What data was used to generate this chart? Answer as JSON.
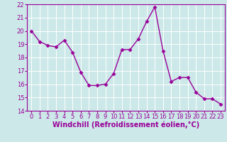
{
  "x": [
    0,
    1,
    2,
    3,
    4,
    5,
    6,
    7,
    8,
    9,
    10,
    11,
    12,
    13,
    14,
    15,
    16,
    17,
    18,
    19,
    20,
    21,
    22,
    23
  ],
  "y": [
    20.0,
    19.2,
    18.9,
    18.8,
    19.3,
    18.4,
    16.9,
    15.9,
    15.9,
    16.0,
    16.8,
    18.6,
    18.6,
    19.4,
    20.7,
    21.8,
    18.5,
    16.2,
    16.5,
    16.5,
    15.4,
    14.9,
    14.9,
    14.5
  ],
  "line_color": "#990099",
  "marker": "D",
  "markersize": 2.5,
  "linewidth": 1.0,
  "xlabel": "Windchill (Refroidissement éolien,°C)",
  "xlabel_fontsize": 7,
  "xlim": [
    -0.5,
    23.5
  ],
  "ylim": [
    14,
    22
  ],
  "yticks": [
    14,
    15,
    16,
    17,
    18,
    19,
    20,
    21,
    22
  ],
  "xticks": [
    0,
    1,
    2,
    3,
    4,
    5,
    6,
    7,
    8,
    9,
    10,
    11,
    12,
    13,
    14,
    15,
    16,
    17,
    18,
    19,
    20,
    21,
    22,
    23
  ],
  "tick_fontsize": 6,
  "bg_color": "#cce8e8",
  "grid_color": "#b0d8d8",
  "axes_color": "#990099"
}
